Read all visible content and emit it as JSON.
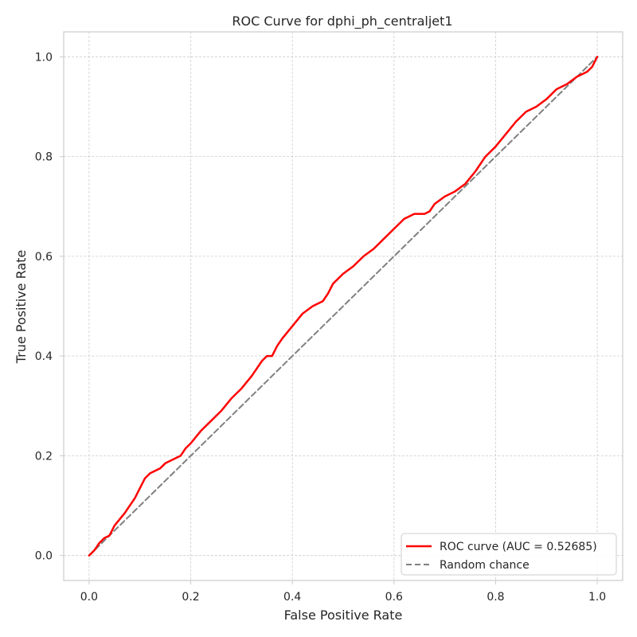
{
  "chart_data": {
    "type": "line",
    "title": "ROC Curve for dphi_ph_centraljet1",
    "xlabel": "False Positive Rate",
    "ylabel": "True Positive Rate",
    "xlim": [
      -0.05,
      1.05
    ],
    "ylim": [
      -0.05,
      1.05
    ],
    "grid": true,
    "legend_position": "bottom-right",
    "xticks": [
      0.0,
      0.2,
      0.4,
      0.6,
      0.8,
      1.0
    ],
    "xtick_labels": [
      "0.0",
      "0.2",
      "0.4",
      "0.6",
      "0.8",
      "1.0"
    ],
    "yticks": [
      0.0,
      0.2,
      0.4,
      0.6,
      0.8,
      1.0
    ],
    "ytick_labels": [
      "0.0",
      "0.2",
      "0.4",
      "0.6",
      "0.8",
      "1.0"
    ],
    "series": [
      {
        "name": "ROC curve (AUC = 0.52685)",
        "color": "#ff0000",
        "style": "solid",
        "x": [
          0.0,
          0.01,
          0.02,
          0.03,
          0.04,
          0.05,
          0.07,
          0.09,
          0.1,
          0.11,
          0.12,
          0.14,
          0.15,
          0.16,
          0.18,
          0.19,
          0.2,
          0.22,
          0.24,
          0.26,
          0.28,
          0.3,
          0.32,
          0.34,
          0.35,
          0.36,
          0.37,
          0.38,
          0.4,
          0.42,
          0.44,
          0.46,
          0.47,
          0.48,
          0.5,
          0.52,
          0.54,
          0.56,
          0.58,
          0.6,
          0.62,
          0.64,
          0.66,
          0.67,
          0.68,
          0.7,
          0.72,
          0.74,
          0.76,
          0.78,
          0.8,
          0.82,
          0.84,
          0.86,
          0.88,
          0.9,
          0.92,
          0.94,
          0.96,
          0.98,
          0.99,
          1.0
        ],
        "y": [
          0.0,
          0.01,
          0.025,
          0.035,
          0.04,
          0.06,
          0.085,
          0.115,
          0.135,
          0.155,
          0.165,
          0.175,
          0.185,
          0.19,
          0.2,
          0.215,
          0.225,
          0.25,
          0.27,
          0.29,
          0.315,
          0.335,
          0.36,
          0.39,
          0.4,
          0.4,
          0.42,
          0.435,
          0.46,
          0.485,
          0.5,
          0.51,
          0.525,
          0.545,
          0.565,
          0.58,
          0.6,
          0.615,
          0.635,
          0.655,
          0.675,
          0.685,
          0.685,
          0.69,
          0.705,
          0.72,
          0.73,
          0.745,
          0.77,
          0.8,
          0.82,
          0.845,
          0.87,
          0.89,
          0.9,
          0.915,
          0.935,
          0.945,
          0.96,
          0.97,
          0.98,
          1.0
        ]
      },
      {
        "name": "Random chance",
        "color": "#808080",
        "style": "dashed",
        "x": [
          0.0,
          1.0
        ],
        "y": [
          0.0,
          1.0
        ]
      }
    ]
  }
}
